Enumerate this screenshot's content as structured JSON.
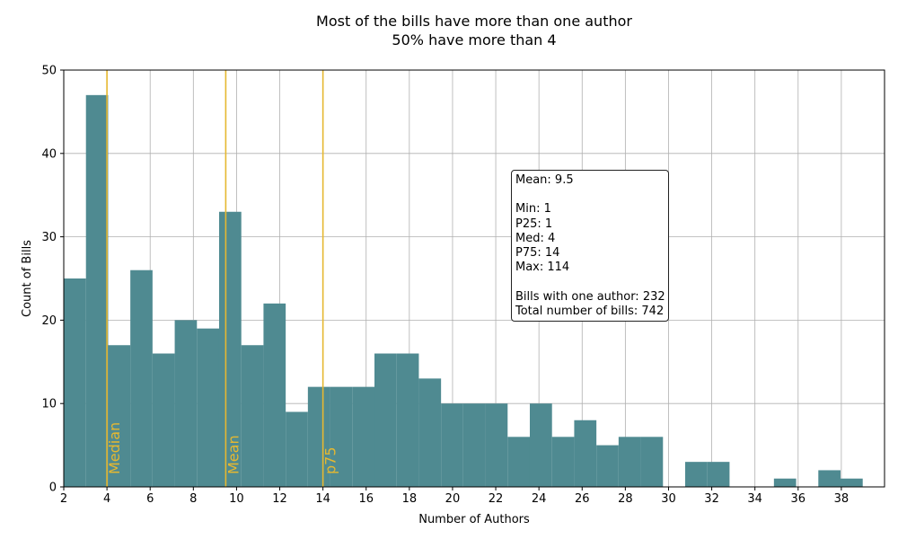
{
  "chart_data": {
    "type": "bar",
    "title_lines": [
      "Most of the bills have more than one author",
      "50% have more than 4"
    ],
    "xlabel": "Number of Authors",
    "ylabel": "Count of Bills",
    "xlim": [
      2,
      40
    ],
    "ylim": [
      0,
      50
    ],
    "xticks": [
      2,
      4,
      6,
      8,
      10,
      12,
      14,
      16,
      18,
      20,
      22,
      24,
      26,
      28,
      30,
      32,
      34,
      36,
      38
    ],
    "yticks": [
      0,
      10,
      20,
      30,
      40,
      50
    ],
    "grid": true,
    "bar_color": "#4f8a91",
    "line_color": "#e6b830",
    "bin_width": 1.0275,
    "bins": [
      {
        "x": 2.0,
        "value": 25
      },
      {
        "x": 3.0275,
        "value": 47
      },
      {
        "x": 4.055,
        "value": 17
      },
      {
        "x": 5.0825,
        "value": 26
      },
      {
        "x": 6.11,
        "value": 16
      },
      {
        "x": 7.1375,
        "value": 20
      },
      {
        "x": 8.165,
        "value": 19
      },
      {
        "x": 9.1925,
        "value": 33
      },
      {
        "x": 10.22,
        "value": 17
      },
      {
        "x": 11.2475,
        "value": 22
      },
      {
        "x": 12.275,
        "value": 9
      },
      {
        "x": 13.3025,
        "value": 12
      },
      {
        "x": 14.33,
        "value": 12
      },
      {
        "x": 15.3575,
        "value": 12
      },
      {
        "x": 16.385,
        "value": 16
      },
      {
        "x": 17.4125,
        "value": 16
      },
      {
        "x": 18.44,
        "value": 13
      },
      {
        "x": 19.4675,
        "value": 10
      },
      {
        "x": 20.495,
        "value": 10
      },
      {
        "x": 21.5225,
        "value": 10
      },
      {
        "x": 22.55,
        "value": 6
      },
      {
        "x": 23.5775,
        "value": 10
      },
      {
        "x": 24.605,
        "value": 6
      },
      {
        "x": 25.6325,
        "value": 8
      },
      {
        "x": 26.66,
        "value": 5
      },
      {
        "x": 27.6875,
        "value": 6
      },
      {
        "x": 28.715,
        "value": 6
      },
      {
        "x": 29.7425,
        "value": 0
      },
      {
        "x": 30.77,
        "value": 3
      },
      {
        "x": 31.7975,
        "value": 3
      },
      {
        "x": 32.825,
        "value": 0
      },
      {
        "x": 33.8525,
        "value": 0
      },
      {
        "x": 34.88,
        "value": 1
      },
      {
        "x": 35.9075,
        "value": 0
      },
      {
        "x": 36.935,
        "value": 2
      },
      {
        "x": 37.9625,
        "value": 1
      }
    ],
    "vlines": [
      {
        "x": 4,
        "label": "Median"
      },
      {
        "x": 9.5,
        "label": "Mean"
      },
      {
        "x": 14,
        "label": "p75"
      }
    ],
    "stats_box": [
      "Mean: 9.5",
      "",
      "Min: 1",
      "P25: 1",
      "Med: 4",
      "P75: 14",
      "Max: 114",
      "",
      "Bills with one author: 232",
      "Total number of bills: 742"
    ]
  }
}
